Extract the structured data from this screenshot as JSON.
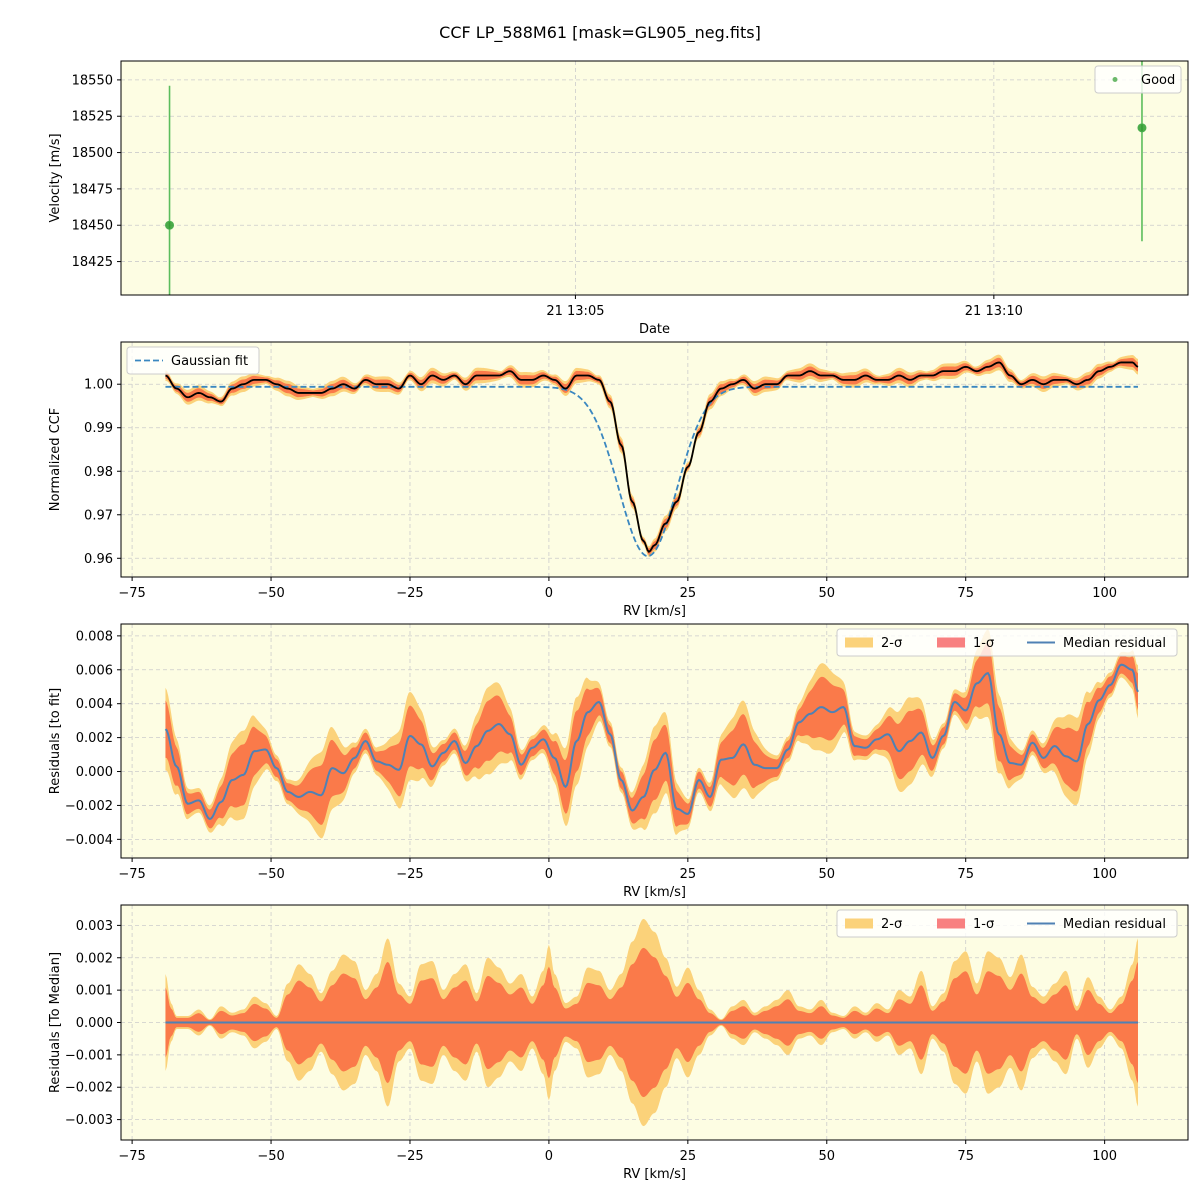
{
  "title": "CCF LP_588M61 [mask=GL905_neg.fits]",
  "colors": {
    "panel_bg": "#fdfde3",
    "good_points": "#2e9b2e",
    "errorbar": "#5cbd5c",
    "ccf_line": "#000000",
    "band_2sigma": "#fbd27a",
    "band_1sigma": "#fa7a4a",
    "gaussian_fit": "#3a87c0",
    "median_residual": "#4f81b4",
    "grid": "#cccccc"
  },
  "chart_data": [
    {
      "id": "velocity",
      "type": "scatter",
      "xlabel": "Date",
      "ylabel": "Velocity [m/s]",
      "x_ticks": [
        "21 13:05",
        "21 13:10"
      ],
      "x_tick_minutes": [
        5,
        10
      ],
      "xlim_minutes": [
        -0.43,
        12.32
      ],
      "ylim": [
        18402,
        18563
      ],
      "y_ticks": [
        18425,
        18450,
        18475,
        18500,
        18525,
        18550
      ],
      "legend": {
        "position": "top-right",
        "entries": [
          "Good"
        ]
      },
      "series": [
        {
          "name": "Good",
          "x_minutes": [
            0.15,
            11.77
          ],
          "y": [
            18450,
            18517
          ],
          "yerr": [
            96,
            78
          ]
        }
      ]
    },
    {
      "id": "ccf",
      "type": "line",
      "xlabel": "RV [km/s]",
      "ylabel": "Normalized CCF",
      "xlim": [
        -77,
        115
      ],
      "ylim": [
        0.9557,
        1.0097
      ],
      "x_ticks": [
        -75,
        -50,
        -25,
        0,
        25,
        50,
        75,
        100
      ],
      "y_ticks": [
        0.96,
        0.97,
        0.98,
        0.99,
        1.0
      ],
      "y_tick_labels": [
        "0.96",
        "0.97",
        "0.98",
        "0.99",
        "1.00"
      ],
      "legend": {
        "position": "top-left",
        "entries": [
          "Gaussian fit"
        ]
      },
      "gaussian_fit": {
        "baseline": 0.9994,
        "depth": 0.0389,
        "center": 17.8,
        "sigma": 5.2
      },
      "ccf_points": [
        [
          -69,
          1.002
        ],
        [
          -67,
          0.999
        ],
        [
          -65,
          0.997
        ],
        [
          -63,
          0.998
        ],
        [
          -61,
          0.997
        ],
        [
          -59,
          0.996
        ],
        [
          -57,
          0.999
        ],
        [
          -55,
          1.0
        ],
        [
          -53,
          1.001
        ],
        [
          -51,
          1.001
        ],
        [
          -49,
          1.0
        ],
        [
          -47,
          0.999
        ],
        [
          -45,
          0.998
        ],
        [
          -43,
          0.998
        ],
        [
          -41,
          0.998
        ],
        [
          -39,
          0.999
        ],
        [
          -37,
          1.0
        ],
        [
          -35,
          0.999
        ],
        [
          -33,
          1.001
        ],
        [
          -31,
          1.0
        ],
        [
          -29,
          1.0
        ],
        [
          -27,
          0.999
        ],
        [
          -25,
          1.002
        ],
        [
          -23,
          1.0
        ],
        [
          -21,
          1.002
        ],
        [
          -19,
          1.001
        ],
        [
          -17,
          1.002
        ],
        [
          -15,
          1.0
        ],
        [
          -13,
          1.002
        ],
        [
          -11,
          1.002
        ],
        [
          -9,
          1.002
        ],
        [
          -7,
          1.003
        ],
        [
          -5,
          1.001
        ],
        [
          -3,
          1.001
        ],
        [
          -1,
          1.002
        ],
        [
          1,
          1.001
        ],
        [
          3,
          0.999
        ],
        [
          5,
          1.002
        ],
        [
          7,
          1.002
        ],
        [
          9,
          1.001
        ],
        [
          11,
          0.996
        ],
        [
          13,
          0.986
        ],
        [
          15,
          0.973
        ],
        [
          17,
          0.964
        ],
        [
          18,
          0.9615
        ],
        [
          19,
          0.963
        ],
        [
          21,
          0.968
        ],
        [
          23,
          0.973
        ],
        [
          25,
          0.981
        ],
        [
          27,
          0.989
        ],
        [
          29,
          0.996
        ],
        [
          31,
          0.999
        ],
        [
          33,
          1.0
        ],
        [
          35,
          1.001
        ],
        [
          37,
          0.999
        ],
        [
          39,
          1.0
        ],
        [
          41,
          1.0
        ],
        [
          43,
          1.002
        ],
        [
          45,
          1.002
        ],
        [
          47,
          1.003
        ],
        [
          49,
          1.002
        ],
        [
          51,
          1.002
        ],
        [
          53,
          1.001
        ],
        [
          55,
          1.001
        ],
        [
          57,
          1.002
        ],
        [
          59,
          1.001
        ],
        [
          61,
          1.001
        ],
        [
          63,
          1.002
        ],
        [
          65,
          1.001
        ],
        [
          67,
          1.002
        ],
        [
          69,
          1.002
        ],
        [
          71,
          1.003
        ],
        [
          73,
          1.003
        ],
        [
          75,
          1.004
        ],
        [
          77,
          1.003
        ],
        [
          79,
          1.004
        ],
        [
          81,
          1.005
        ],
        [
          83,
          1.002
        ],
        [
          85,
          1.0
        ],
        [
          87,
          1.001
        ],
        [
          89,
          1.0
        ],
        [
          91,
          1.001
        ],
        [
          93,
          1.001
        ],
        [
          95,
          1.0
        ],
        [
          97,
          1.001
        ],
        [
          99,
          1.003
        ],
        [
          101,
          1.004
        ],
        [
          103,
          1.005
        ],
        [
          105,
          1.005
        ],
        [
          106,
          1.004
        ]
      ]
    },
    {
      "id": "residual_fit",
      "type": "area",
      "xlabel": "RV [km/s]",
      "ylabel": "Residuals [to fit]",
      "xlim": [
        -77,
        115
      ],
      "ylim": [
        -0.0051,
        0.0087
      ],
      "x_ticks": [
        -75,
        -50,
        -25,
        0,
        25,
        50,
        75,
        100
      ],
      "y_ticks": [
        -0.004,
        -0.002,
        0.0,
        0.002,
        0.004,
        0.006,
        0.008
      ],
      "y_tick_labels": [
        "−0.004",
        "−0.002",
        "0.000",
        "0.002",
        "0.004",
        "0.006",
        "0.008"
      ],
      "legend": {
        "position": "top-right",
        "entries": [
          "2-σ",
          "1-σ",
          "Median residual"
        ]
      },
      "median_points": [
        [
          -69,
          0.0025
        ],
        [
          -67,
          0.0003
        ],
        [
          -65,
          -0.0019
        ],
        [
          -63,
          -0.0017
        ],
        [
          -61,
          -0.0028
        ],
        [
          -59,
          -0.0018
        ],
        [
          -57,
          -0.0005
        ],
        [
          -55,
          -0.0002
        ],
        [
          -53,
          0.0012
        ],
        [
          -51,
          0.0013
        ],
        [
          -49,
          0.0002
        ],
        [
          -47,
          -0.0012
        ],
        [
          -45,
          -0.0015
        ],
        [
          -43,
          -0.0012
        ],
        [
          -41,
          -0.0014
        ],
        [
          -39,
          0.0002
        ],
        [
          -37,
          -0.0001
        ],
        [
          -35,
          0.0008
        ],
        [
          -33,
          0.0018
        ],
        [
          -31,
          0.0006
        ],
        [
          -29,
          0.0004
        ],
        [
          -27,
          0.0001
        ],
        [
          -25,
          0.0021
        ],
        [
          -23,
          0.0016
        ],
        [
          -21,
          0.0003
        ],
        [
          -19,
          0.0011
        ],
        [
          -17,
          0.0018
        ],
        [
          -15,
          0.0005
        ],
        [
          -13,
          0.0015
        ],
        [
          -11,
          0.0024
        ],
        [
          -9,
          0.0028
        ],
        [
          -7,
          0.0022
        ],
        [
          -5,
          0.0004
        ],
        [
          -3,
          0.0014
        ],
        [
          -1,
          0.0019
        ],
        [
          1,
          0.0008
        ],
        [
          3,
          -0.0009
        ],
        [
          5,
          0.0018
        ],
        [
          7,
          0.0035
        ],
        [
          9,
          0.0041
        ],
        [
          11,
          0.0022
        ],
        [
          13,
          -0.0005
        ],
        [
          15,
          -0.0023
        ],
        [
          17,
          -0.0015
        ],
        [
          19,
          0.0001
        ],
        [
          21,
          0.0011
        ],
        [
          23,
          -0.0022
        ],
        [
          25,
          -0.0025
        ],
        [
          27,
          -0.0005
        ],
        [
          29,
          -0.0015
        ],
        [
          31,
          0.0007
        ],
        [
          33,
          0.0008
        ],
        [
          35,
          0.0016
        ],
        [
          37,
          0.0004
        ],
        [
          39,
          0.0002
        ],
        [
          41,
          0.0002
        ],
        [
          43,
          0.0013
        ],
        [
          45,
          0.0029
        ],
        [
          47,
          0.0034
        ],
        [
          49,
          0.0038
        ],
        [
          51,
          0.0035
        ],
        [
          53,
          0.0038
        ],
        [
          55,
          0.0015
        ],
        [
          57,
          0.0014
        ],
        [
          59,
          0.0019
        ],
        [
          61,
          0.0022
        ],
        [
          63,
          0.0012
        ],
        [
          65,
          0.0018
        ],
        [
          67,
          0.0023
        ],
        [
          69,
          0.0008
        ],
        [
          71,
          0.0021
        ],
        [
          73,
          0.0041
        ],
        [
          75,
          0.0036
        ],
        [
          77,
          0.0052
        ],
        [
          79,
          0.0058
        ],
        [
          81,
          0.0022
        ],
        [
          83,
          0.0005
        ],
        [
          85,
          0.0004
        ],
        [
          87,
          0.0017
        ],
        [
          89,
          0.0008
        ],
        [
          91,
          0.0015
        ],
        [
          93,
          0.0009
        ],
        [
          95,
          0.0006
        ],
        [
          97,
          0.0028
        ],
        [
          99,
          0.0042
        ],
        [
          101,
          0.0051
        ],
        [
          103,
          0.0063
        ],
        [
          105,
          0.006
        ],
        [
          106,
          0.0047
        ]
      ],
      "band_half_widths": {
        "1sigma": [
          0.0005,
          0.0018
        ],
        "2sigma": [
          0.0007,
          0.0026
        ]
      }
    },
    {
      "id": "residual_median",
      "type": "area",
      "xlabel": "RV [km/s]",
      "ylabel": "Residuals [To Median]",
      "xlim": [
        -77,
        115
      ],
      "ylim": [
        -0.00363,
        0.00363
      ],
      "x_ticks": [
        -75,
        -50,
        -25,
        0,
        25,
        50,
        75,
        100
      ],
      "y_ticks": [
        -0.003,
        -0.002,
        -0.001,
        0.0,
        0.001,
        0.002,
        0.003
      ],
      "y_tick_labels": [
        "−0.003",
        "−0.002",
        "−0.001",
        "0.000",
        "0.001",
        "0.002",
        "0.003"
      ],
      "legend": {
        "position": "top-right",
        "entries": [
          "2-σ",
          "1-σ",
          "Median residual"
        ]
      },
      "median_value": 0.0,
      "envelope_2sigma": [
        [
          -69,
          0.0015
        ],
        [
          -68,
          0.0006
        ],
        [
          -67,
          0.0002
        ],
        [
          -65,
          0.0002
        ],
        [
          -63,
          0.0004
        ],
        [
          -61,
          0.0001
        ],
        [
          -59,
          0.0005
        ],
        [
          -57,
          0.0003
        ],
        [
          -55,
          0.0004
        ],
        [
          -53,
          0.0008
        ],
        [
          -51,
          0.0006
        ],
        [
          -49,
          0.0002
        ],
        [
          -47,
          0.0012
        ],
        [
          -45,
          0.0018
        ],
        [
          -43,
          0.0015
        ],
        [
          -41,
          0.0009
        ],
        [
          -39,
          0.0016
        ],
        [
          -37,
          0.0021
        ],
        [
          -35,
          0.0019
        ],
        [
          -33,
          0.001
        ],
        [
          -31,
          0.0015
        ],
        [
          -29,
          0.0026
        ],
        [
          -27,
          0.0012
        ],
        [
          -25,
          0.0008
        ],
        [
          -23,
          0.0018
        ],
        [
          -21,
          0.0019
        ],
        [
          -19,
          0.001
        ],
        [
          -17,
          0.0015
        ],
        [
          -15,
          0.0018
        ],
        [
          -13,
          0.0009
        ],
        [
          -11,
          0.002
        ],
        [
          -9,
          0.0017
        ],
        [
          -7,
          0.0012
        ],
        [
          -5,
          0.0015
        ],
        [
          -3,
          0.0008
        ],
        [
          -1,
          0.0016
        ],
        [
          0,
          0.0024
        ],
        [
          1,
          0.0015
        ],
        [
          3,
          0.0006
        ],
        [
          5,
          0.0008
        ],
        [
          7,
          0.0017
        ],
        [
          9,
          0.0016
        ],
        [
          11,
          0.001
        ],
        [
          13,
          0.0015
        ],
        [
          15,
          0.0025
        ],
        [
          17,
          0.0032
        ],
        [
          19,
          0.0028
        ],
        [
          21,
          0.002
        ],
        [
          23,
          0.0011
        ],
        [
          25,
          0.0017
        ],
        [
          27,
          0.001
        ],
        [
          29,
          0.0004
        ],
        [
          31,
          0.0001
        ],
        [
          33,
          0.0005
        ],
        [
          35,
          0.0007
        ],
        [
          37,
          0.0003
        ],
        [
          39,
          0.0005
        ],
        [
          41,
          0.0007
        ],
        [
          43,
          0.001
        ],
        [
          45,
          0.0005
        ],
        [
          47,
          0.0004
        ],
        [
          49,
          0.0007
        ],
        [
          51,
          0.0003
        ],
        [
          53,
          0.0002
        ],
        [
          55,
          0.0005
        ],
        [
          57,
          0.0003
        ],
        [
          59,
          0.0006
        ],
        [
          61,
          0.0004
        ],
        [
          63,
          0.001
        ],
        [
          65,
          0.0008
        ],
        [
          67,
          0.0016
        ],
        [
          69,
          0.0005
        ],
        [
          71,
          0.0009
        ],
        [
          73,
          0.0019
        ],
        [
          75,
          0.0022
        ],
        [
          77,
          0.0012
        ],
        [
          79,
          0.0022
        ],
        [
          81,
          0.002
        ],
        [
          83,
          0.0014
        ],
        [
          85,
          0.0021
        ],
        [
          87,
          0.0011
        ],
        [
          89,
          0.0008
        ],
        [
          91,
          0.0012
        ],
        [
          93,
          0.0016
        ],
        [
          95,
          0.0005
        ],
        [
          97,
          0.0014
        ],
        [
          99,
          0.0008
        ],
        [
          101,
          0.0004
        ],
        [
          103,
          0.0008
        ],
        [
          105,
          0.0018
        ],
        [
          106,
          0.0026
        ]
      ],
      "envelope_1sigma_ratio": 0.72
    }
  ]
}
